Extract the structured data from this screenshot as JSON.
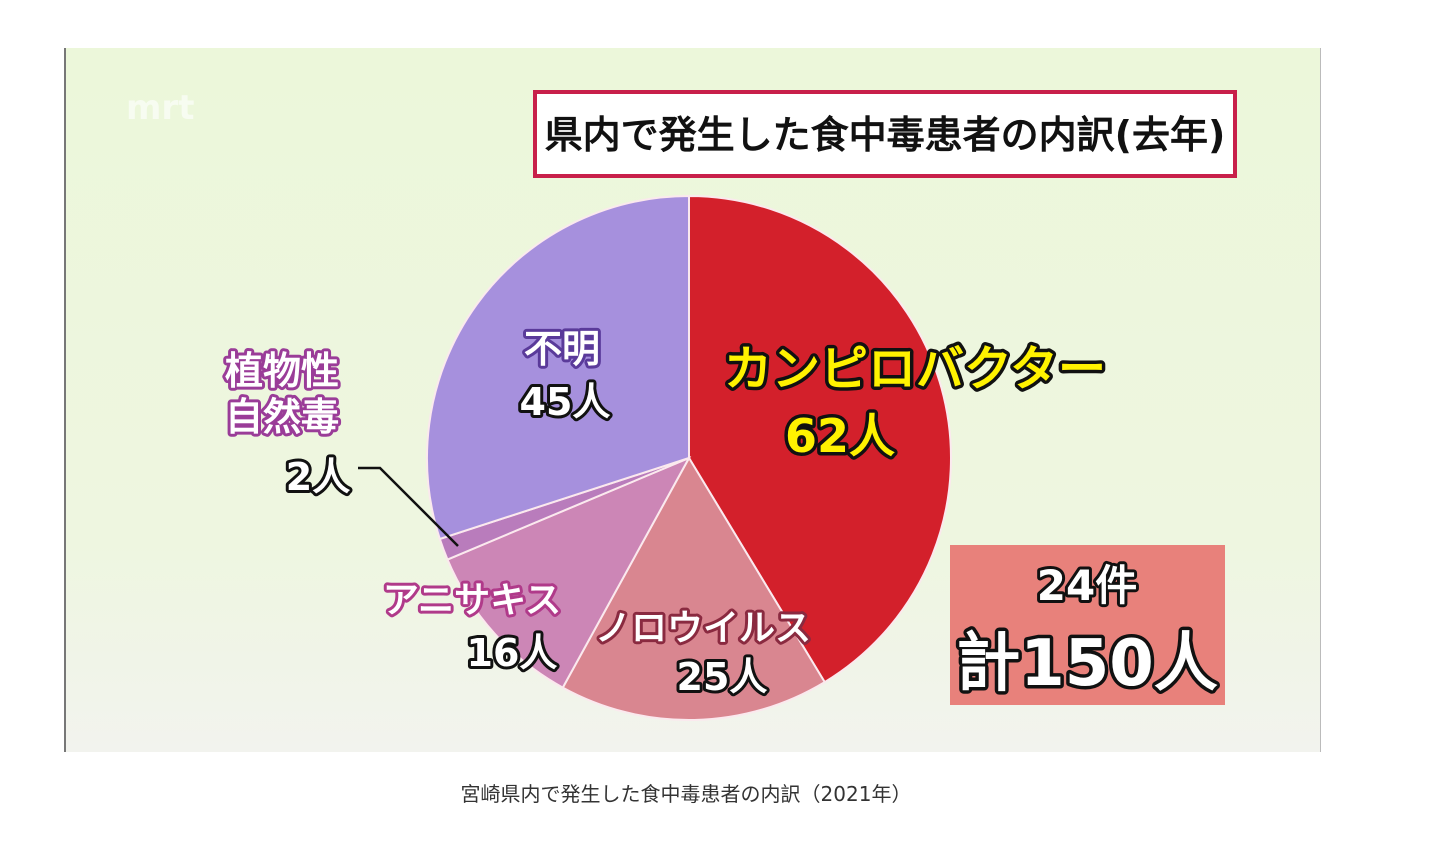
{
  "chart_data": {
    "type": "pie",
    "title": "県内で発生した食中毒患者の内訳(去年)",
    "watermark": "mrt",
    "start": "top, clockwise",
    "slices": [
      {
        "label": "カンピロバクター",
        "value": 62,
        "value_label": "62人",
        "color": "#d3202b"
      },
      {
        "label": "ノロウイルス",
        "value": 25,
        "value_label": "25人",
        "color": "#d98690"
      },
      {
        "label": "アニサキス",
        "value": 16,
        "value_label": "16人",
        "color": "#cc86b6"
      },
      {
        "label": "植物性自然毒",
        "label_lines": [
          "植物性",
          "自然毒"
        ],
        "value": 2,
        "value_label": "2人",
        "color": "#b97cbc"
      },
      {
        "label": "不明",
        "value": 45,
        "value_label": "45人",
        "color": "#a690dd"
      }
    ],
    "summary": {
      "cases": "24件",
      "total": "計150人"
    }
  },
  "caption": "宮崎県内で発生した食中毒患者の内訳（2021年）"
}
